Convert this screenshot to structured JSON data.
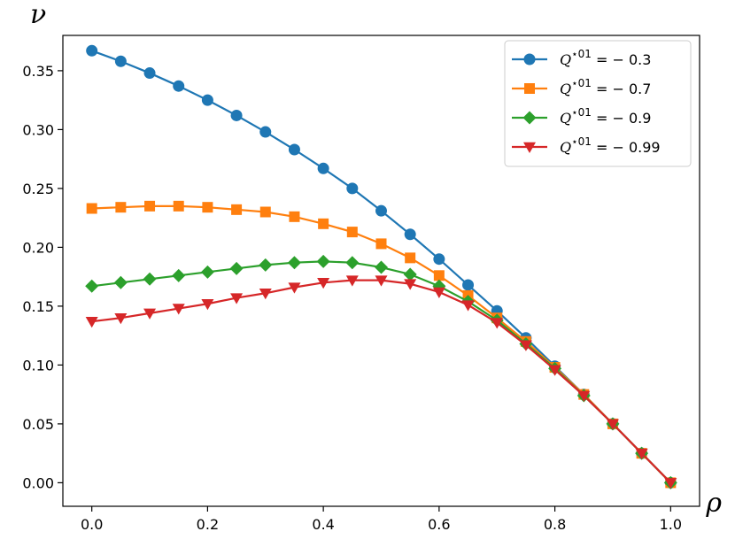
{
  "chart_data": {
    "type": "line",
    "title": "",
    "xlabel": "ρ",
    "ylabel": "ν",
    "xlim": [
      -0.05,
      1.05
    ],
    "ylim": [
      -0.02,
      0.38
    ],
    "xticks": [
      0.0,
      0.2,
      0.4,
      0.6,
      0.8,
      1.0
    ],
    "xtick_labels": [
      "0.0",
      "0.2",
      "0.4",
      "0.6",
      "0.8",
      "1.0"
    ],
    "yticks": [
      0.0,
      0.05,
      0.1,
      0.15,
      0.2,
      0.25,
      0.3,
      0.35
    ],
    "ytick_labels": [
      "0.00",
      "0.05",
      "0.10",
      "0.15",
      "0.20",
      "0.25",
      "0.30",
      "0.35"
    ],
    "grid": false,
    "legend_position": "top-right",
    "x": [
      0.0,
      0.05,
      0.1,
      0.15,
      0.2,
      0.25,
      0.3,
      0.35,
      0.4,
      0.45,
      0.5,
      0.55,
      0.6,
      0.65,
      0.7,
      0.75,
      0.8,
      0.85,
      0.9,
      0.95,
      1.0
    ],
    "series": [
      {
        "legend_var": "Q",
        "legend_sup": "⋆01",
        "legend_rest": " = − 0.3",
        "color": "#1f77b4",
        "marker": "circle",
        "values": [
          0.367,
          0.358,
          0.348,
          0.337,
          0.325,
          0.312,
          0.298,
          0.283,
          0.267,
          0.25,
          0.231,
          0.211,
          0.19,
          0.168,
          0.146,
          0.123,
          0.099,
          0.075,
          0.05,
          0.025,
          0.0
        ]
      },
      {
        "legend_var": "Q",
        "legend_sup": "⋆01",
        "legend_rest": " = − 0.7",
        "color": "#ff7f0e",
        "marker": "square",
        "values": [
          0.233,
          0.234,
          0.235,
          0.235,
          0.234,
          0.232,
          0.23,
          0.226,
          0.22,
          0.213,
          0.203,
          0.191,
          0.176,
          0.159,
          0.14,
          0.12,
          0.098,
          0.075,
          0.05,
          0.025,
          0.0
        ]
      },
      {
        "legend_var": "Q",
        "legend_sup": "⋆01",
        "legend_rest": " = − 0.9",
        "color": "#2ca02c",
        "marker": "diamond",
        "values": [
          0.167,
          0.17,
          0.173,
          0.176,
          0.179,
          0.182,
          0.185,
          0.187,
          0.188,
          0.187,
          0.183,
          0.177,
          0.167,
          0.154,
          0.138,
          0.118,
          0.097,
          0.074,
          0.05,
          0.025,
          0.0
        ]
      },
      {
        "legend_var": "Q",
        "legend_sup": "⋆01",
        "legend_rest": " = − 0.99",
        "color": "#d62728",
        "marker": "triangle-down",
        "values": [
          0.137,
          0.14,
          0.144,
          0.148,
          0.152,
          0.157,
          0.161,
          0.166,
          0.17,
          0.172,
          0.172,
          0.169,
          0.162,
          0.151,
          0.136,
          0.117,
          0.096,
          0.074,
          0.05,
          0.025,
          0.0
        ]
      }
    ]
  }
}
